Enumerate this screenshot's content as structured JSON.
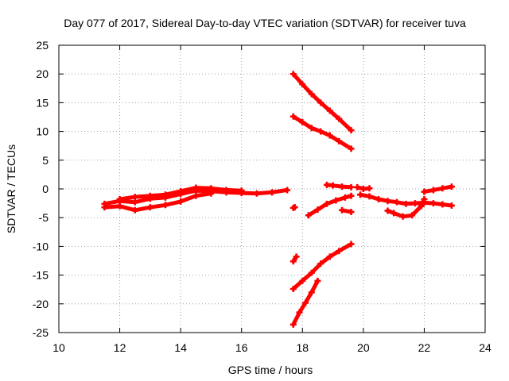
{
  "chart_data": {
    "type": "scatter",
    "title": "Day 077 of 2017, Sidereal Day-to-day VTEC variation (SDTVAR) for receiver tuva",
    "xlabel": "GPS time / hours",
    "ylabel": "SDTVAR / TECUs",
    "xlim": [
      10,
      24
    ],
    "ylim": [
      -25,
      25
    ],
    "xticks": [
      "10",
      "12",
      "14",
      "16",
      "18",
      "20",
      "22",
      "24"
    ],
    "yticks": [
      "25",
      "20",
      "15",
      "10",
      "5",
      "0",
      "-5",
      "-10",
      "-15",
      "-20",
      "-25"
    ],
    "grid": true,
    "legend": "none",
    "marker_color": "#ff0000",
    "series": [
      {
        "points": [
          [
            11.5,
            -2.6
          ],
          [
            12.0,
            -2.1
          ],
          [
            12.5,
            -2.3
          ],
          [
            13.0,
            -1.7
          ],
          [
            13.5,
            -1.5
          ],
          [
            14.0,
            -0.9
          ],
          [
            14.5,
            -0.3
          ],
          [
            15.0,
            -0.4
          ],
          [
            15.5,
            -0.6
          ],
          [
            16.0,
            -0.7
          ],
          [
            16.5,
            -0.8
          ],
          [
            17.0,
            -0.6
          ],
          [
            17.5,
            -0.2
          ]
        ]
      },
      {
        "points": [
          [
            11.5,
            -3.2
          ],
          [
            12.0,
            -3.0
          ],
          [
            12.5,
            -3.7
          ],
          [
            13.0,
            -3.2
          ],
          [
            13.5,
            -2.8
          ],
          [
            14.0,
            -2.2
          ],
          [
            14.5,
            -1.2
          ],
          [
            15.0,
            -0.8
          ]
        ]
      },
      {
        "points": [
          [
            12.0,
            -1.8
          ],
          [
            12.5,
            -1.4
          ],
          [
            13.0,
            -1.2
          ],
          [
            13.5,
            -1.0
          ],
          [
            14.0,
            -0.4
          ],
          [
            14.5,
            0.2
          ],
          [
            15.0,
            0.1
          ],
          [
            15.5,
            -0.2
          ],
          [
            16.0,
            -0.3
          ]
        ]
      },
      {
        "points": [
          [
            17.7,
            20.0
          ],
          [
            18.0,
            18.2
          ],
          [
            18.3,
            16.5
          ],
          [
            18.6,
            15.0
          ],
          [
            18.9,
            13.6
          ],
          [
            19.2,
            12.2
          ],
          [
            19.6,
            10.2
          ]
        ]
      },
      {
        "points": [
          [
            17.7,
            12.6
          ],
          [
            18.0,
            11.6
          ],
          [
            18.3,
            10.6
          ],
          [
            18.6,
            10.0
          ],
          [
            18.9,
            9.3
          ],
          [
            19.2,
            8.3
          ],
          [
            19.6,
            7.0
          ]
        ]
      },
      {
        "points": [
          [
            17.7,
            -17.4
          ],
          [
            18.0,
            -16.0
          ],
          [
            18.3,
            -14.6
          ],
          [
            18.6,
            -13.0
          ],
          [
            18.9,
            -11.8
          ],
          [
            19.2,
            -10.8
          ],
          [
            19.6,
            -9.6
          ]
        ]
      },
      {
        "points": [
          [
            17.7,
            -23.6
          ],
          [
            17.9,
            -21.5
          ],
          [
            18.1,
            -19.8
          ],
          [
            18.3,
            -18.0
          ],
          [
            18.5,
            -16.0
          ]
        ]
      },
      {
        "points": [
          [
            17.7,
            -12.6
          ],
          [
            17.8,
            -11.8
          ]
        ]
      },
      {
        "points": [
          [
            17.7,
            -3.3
          ],
          [
            17.75,
            -3.2
          ]
        ]
      },
      {
        "points": [
          [
            18.2,
            -4.6
          ],
          [
            18.5,
            -3.6
          ],
          [
            18.8,
            -2.6
          ],
          [
            19.1,
            -2.0
          ],
          [
            19.4,
            -1.5
          ],
          [
            19.6,
            -1.2
          ]
        ]
      },
      {
        "points": [
          [
            18.8,
            0.7
          ],
          [
            19.0,
            0.6
          ],
          [
            19.3,
            0.4
          ],
          [
            19.6,
            0.3
          ]
        ]
      },
      {
        "points": [
          [
            19.3,
            -3.7
          ],
          [
            19.6,
            -4.0
          ]
        ]
      },
      {
        "points": [
          [
            19.8,
            0.3
          ],
          [
            20.0,
            0.0
          ],
          [
            20.2,
            0.1
          ]
        ]
      },
      {
        "points": [
          [
            19.9,
            -1.0
          ],
          [
            20.2,
            -1.3
          ],
          [
            20.5,
            -1.8
          ],
          [
            20.8,
            -2.1
          ],
          [
            21.1,
            -2.3
          ],
          [
            21.4,
            -2.6
          ],
          [
            21.7,
            -2.5
          ],
          [
            22.0,
            -2.4
          ],
          [
            22.3,
            -2.5
          ],
          [
            22.6,
            -2.7
          ],
          [
            22.9,
            -2.9
          ]
        ]
      },
      {
        "points": [
          [
            20.8,
            -3.8
          ],
          [
            21.0,
            -4.2
          ],
          [
            21.3,
            -4.8
          ],
          [
            21.6,
            -4.6
          ],
          [
            21.9,
            -3.0
          ],
          [
            22.0,
            -1.8
          ]
        ]
      },
      {
        "points": [
          [
            22.0,
            -0.5
          ],
          [
            22.3,
            -0.2
          ],
          [
            22.6,
            0.1
          ],
          [
            22.9,
            0.4
          ]
        ]
      }
    ]
  }
}
